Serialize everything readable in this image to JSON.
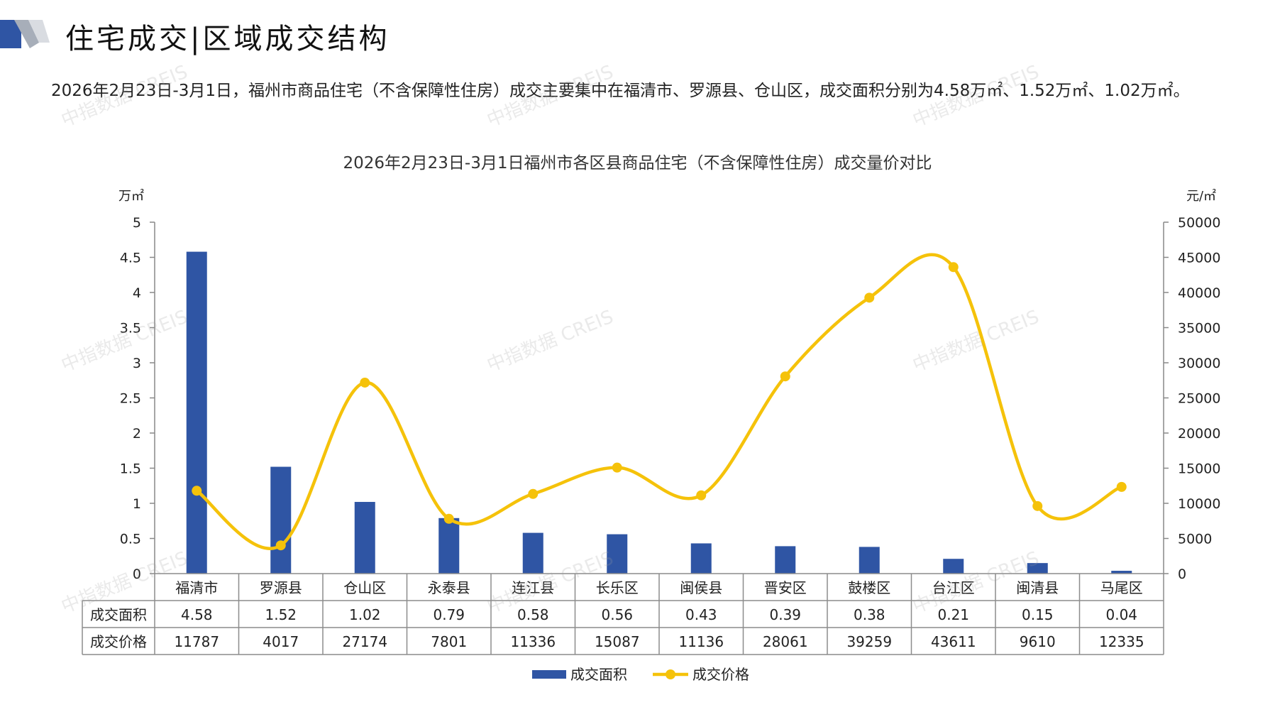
{
  "header": {
    "title": "住宅成交|区域成交结构",
    "summary": "2026年2月23日-3月1日，福州市商品住宅（不含保障性住房）成交主要集中在福清市、罗源县、仓山区，成交面积分别为4.58万㎡、1.52万㎡、1.02万㎡。"
  },
  "watermark": "中指数据 CREIS",
  "chart_data": {
    "type": "bar",
    "title": "2026年2月23日-3月1日福州市各区县商品住宅（不含保障性住房）成交量价对比",
    "categories": [
      "福清市",
      "罗源县",
      "仓山区",
      "永泰县",
      "连江县",
      "长乐区",
      "闽侯县",
      "晋安区",
      "鼓楼区",
      "台江区",
      "闽清县",
      "马尾区"
    ],
    "y_left": {
      "unit": "万㎡",
      "min": 0,
      "max": 5,
      "ticks": [
        "0",
        "0.5",
        "1",
        "1.5",
        "2",
        "2.5",
        "3",
        "3.5",
        "4",
        "4.5",
        "5"
      ]
    },
    "y_right": {
      "unit": "元/㎡",
      "min": 0,
      "max": 50000,
      "ticks": [
        "0",
        "5000",
        "10000",
        "15000",
        "20000",
        "25000",
        "30000",
        "35000",
        "40000",
        "45000",
        "50000"
      ]
    },
    "series": [
      {
        "name": "成交面积",
        "type": "bar",
        "axis": "left",
        "color": "#2f55a4",
        "values": [
          4.58,
          1.52,
          1.02,
          0.79,
          0.58,
          0.56,
          0.43,
          0.39,
          0.38,
          0.21,
          0.15,
          0.04
        ],
        "labels": [
          "4.58",
          "1.52",
          "1.02",
          "0.79",
          "0.58",
          "0.56",
          "0.43",
          "0.39",
          "0.38",
          "0.21",
          "0.15",
          "0.04"
        ]
      },
      {
        "name": "成交价格",
        "type": "line",
        "axis": "right",
        "color": "#f5c20a",
        "smooth": true,
        "values": [
          11787,
          4017,
          27174,
          7801,
          11336,
          15087,
          11136,
          28061,
          39259,
          43611,
          9610,
          12335
        ],
        "labels": [
          "11787",
          "4017",
          "27174",
          "7801",
          "11336",
          "15087",
          "11136",
          "28061",
          "39259",
          "43611",
          "9610",
          "12335"
        ]
      }
    ],
    "legend_position": "bottom",
    "grid": false,
    "data_table": true
  }
}
